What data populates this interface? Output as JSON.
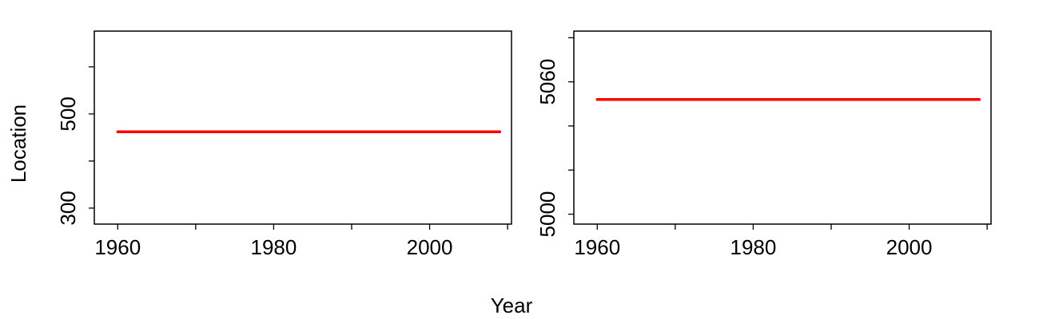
{
  "figure": {
    "xlabel": "Year",
    "ylabel": "Location"
  },
  "chart_data": [
    {
      "type": "line",
      "xlim": [
        1957,
        2010.5
      ],
      "ylim": [
        266,
        676
      ],
      "x_ticks": [
        1960,
        1970,
        1980,
        1990,
        2000,
        2010
      ],
      "x_tick_labels": [
        "1960",
        "1980",
        "2000"
      ],
      "x_tick_label_values": [
        1960,
        1980,
        2000
      ],
      "y_ticks": [
        300,
        400,
        500,
        600
      ],
      "y_tick_labels": [
        "300",
        "500"
      ],
      "y_tick_label_values": [
        300,
        500
      ],
      "series": [
        {
          "x": [
            1960,
            2009
          ],
          "y": [
            462,
            462
          ],
          "color": "#ff0000"
        }
      ],
      "grid": false
    },
    {
      "type": "line",
      "xlim": [
        1957,
        2010.5
      ],
      "ylim": [
        4995.5,
        5083
      ],
      "x_ticks": [
        1960,
        1970,
        1980,
        1990,
        2000,
        2010
      ],
      "x_tick_labels": [
        "1960",
        "1980",
        "2000"
      ],
      "x_tick_label_values": [
        1960,
        1980,
        2000
      ],
      "y_ticks": [
        5000,
        5020,
        5040,
        5060,
        5080
      ],
      "y_tick_labels": [
        "5000",
        "5060"
      ],
      "y_tick_label_values": [
        5000,
        5060
      ],
      "series": [
        {
          "x": [
            1960,
            2009
          ],
          "y": [
            5052,
            5052
          ],
          "color": "#ff0000"
        }
      ],
      "grid": false
    }
  ]
}
